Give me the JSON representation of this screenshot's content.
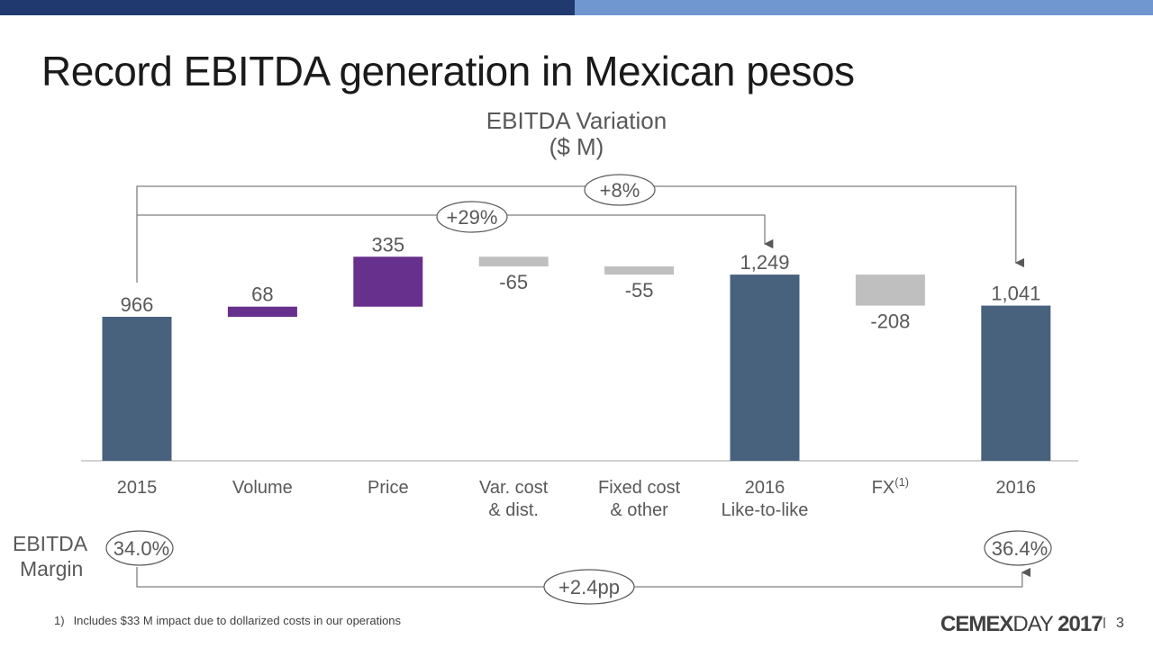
{
  "header": {
    "title": "Record EBITDA generation in Mexican pesos"
  },
  "colors": {
    "topbar_dark": "#203a70",
    "topbar_light": "#7097cf",
    "total_bar": "#48617d",
    "increase_bar": "#67308c",
    "decrease_bar": "#bfbfbf",
    "connector": "#7f7f7f"
  },
  "chart_data": {
    "type": "bar",
    "subtype": "waterfall",
    "title": "EBITDA Variation",
    "subtitle": "($ M)",
    "xlabel": "",
    "ylabel": "",
    "grid": false,
    "categories": [
      {
        "label": "2015",
        "label2": ""
      },
      {
        "label": "Volume",
        "label2": ""
      },
      {
        "label": "Price",
        "label2": ""
      },
      {
        "label": "Var. cost",
        "label2": "& dist."
      },
      {
        "label": "Fixed cost",
        "label2": "& other"
      },
      {
        "label": "2016",
        "label2": "Like-to-like"
      },
      {
        "label": "FX",
        "label2": "",
        "superscript": "(1)"
      },
      {
        "label": "2016",
        "label2": ""
      }
    ],
    "values": [
      966,
      68,
      335,
      -65,
      -55,
      1249,
      -208,
      1041
    ],
    "value_labels": [
      "966",
      "68",
      "335",
      "-65",
      "-55",
      "1,249",
      "-208",
      "1,041"
    ],
    "bar_kinds": [
      "total",
      "increase",
      "increase",
      "decrease",
      "decrease",
      "total",
      "decrease",
      "total"
    ],
    "annotations": [
      {
        "label": "+29%",
        "from": "2015",
        "to": "2016 Like-to-like"
      },
      {
        "label": "+8%",
        "from": "2015",
        "to": "2016"
      }
    ],
    "ylim": [
      0,
      1320
    ]
  },
  "margin": {
    "label_line1": "EBITDA",
    "label_line2": "Margin",
    "start_value": "34.0%",
    "end_value": "36.4%",
    "change": "+2.4pp"
  },
  "footer": {
    "footnote_number": "1)",
    "footnote_text": "Includes $33 M impact due to dollarized costs in our operations",
    "brand_bold": "CEMEX",
    "brand_light": "DAY",
    "brand_year": "2017",
    "page_number": "3"
  }
}
